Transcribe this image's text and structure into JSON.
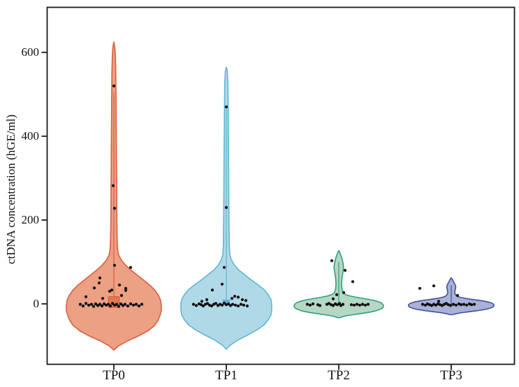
{
  "figure": {
    "background": "#ffffff",
    "axis_color": "#1a1a1a",
    "point_color": "#0e0e0e"
  },
  "chart_data": {
    "type": "violin",
    "title": "",
    "xlabel": "",
    "ylabel": "ctDNA concentration (hGE/ml)",
    "categories": [
      "TP0",
      "TP1",
      "TP2",
      "TP3"
    ],
    "yticks": [
      0,
      200,
      400,
      600
    ],
    "ytick_labels": [
      "0",
      "200",
      "400",
      "600"
    ],
    "ylim": [
      -130,
      680
    ],
    "grid": false,
    "legend": "none",
    "groups": [
      {
        "label": "TP0",
        "fill": "#ECA084",
        "stroke": "#D9603C",
        "range": [
          -110,
          625
        ],
        "profile": [
          [
            -110,
            0
          ],
          [
            -100,
            7
          ],
          [
            -88,
            20
          ],
          [
            -76,
            36
          ],
          [
            -64,
            49
          ],
          [
            -52,
            58
          ],
          [
            -40,
            63
          ],
          [
            -28,
            66
          ],
          [
            -16,
            68
          ],
          [
            -4,
            68
          ],
          [
            8,
            67
          ],
          [
            20,
            64
          ],
          [
            32,
            59
          ],
          [
            44,
            52
          ],
          [
            56,
            43
          ],
          [
            68,
            34
          ],
          [
            80,
            25
          ],
          [
            92,
            17
          ],
          [
            104,
            11
          ],
          [
            116,
            7
          ],
          [
            128,
            5.5
          ],
          [
            150,
            4.8
          ],
          [
            200,
            4.3
          ],
          [
            280,
            4
          ],
          [
            380,
            3.6
          ],
          [
            480,
            3.2
          ],
          [
            550,
            2.8
          ],
          [
            590,
            2.2
          ],
          [
            612,
            1.4
          ],
          [
            625,
            0
          ]
        ],
        "box": {
          "halfwidth": 7.5,
          "top": 17,
          "bottom": -8,
          "fill": "#E37A50"
        },
        "center_line": {
          "from": 17,
          "to": 505
        },
        "median_tick": null,
        "points": [
          [
            0,
            520
          ],
          [
            -1,
            282
          ],
          [
            1,
            228
          ],
          [
            1,
            92
          ],
          [
            24,
            87
          ],
          [
            -20,
            62
          ],
          [
            -21,
            50
          ],
          [
            8,
            45
          ],
          [
            -28,
            38
          ],
          [
            17,
            37
          ],
          [
            -3,
            33
          ],
          [
            17,
            32
          ],
          [
            -6,
            30
          ],
          [
            11,
            20
          ],
          [
            -40,
            17
          ],
          [
            -16,
            13
          ],
          [
            -48,
            -1
          ],
          [
            -44,
            -5
          ],
          [
            -40,
            1
          ],
          [
            -36,
            -3
          ],
          [
            -32,
            -1
          ],
          [
            -29,
            -6
          ],
          [
            -26,
            0
          ],
          [
            -23,
            -4
          ],
          [
            -20,
            -1
          ],
          [
            -17,
            -5
          ],
          [
            -14,
            0
          ],
          [
            -11,
            -3
          ],
          [
            -8,
            -1
          ],
          [
            -5,
            -5
          ],
          [
            -2,
            1
          ],
          [
            1,
            -3
          ],
          [
            4,
            -1
          ],
          [
            7,
            -6
          ],
          [
            10,
            0
          ],
          [
            13,
            -4
          ],
          [
            16,
            -1
          ],
          [
            20,
            -5
          ],
          [
            24,
            0
          ],
          [
            28,
            -3
          ],
          [
            32,
            -1
          ],
          [
            36,
            -5
          ],
          [
            40,
            -1
          ]
        ]
      },
      {
        "label": "TP1",
        "fill": "#B0D9E8",
        "stroke": "#62B5D2",
        "range": [
          -108,
          565
        ],
        "profile": [
          [
            -108,
            0
          ],
          [
            -98,
            6
          ],
          [
            -86,
            17
          ],
          [
            -74,
            31
          ],
          [
            -62,
            44
          ],
          [
            -50,
            54
          ],
          [
            -38,
            60
          ],
          [
            -26,
            64
          ],
          [
            -14,
            65
          ],
          [
            -2,
            65
          ],
          [
            10,
            64
          ],
          [
            22,
            60
          ],
          [
            34,
            54
          ],
          [
            46,
            45
          ],
          [
            58,
            35
          ],
          [
            70,
            26
          ],
          [
            82,
            17
          ],
          [
            94,
            11
          ],
          [
            106,
            7
          ],
          [
            118,
            5
          ],
          [
            140,
            4.3
          ],
          [
            200,
            3.8
          ],
          [
            300,
            3.4
          ],
          [
            400,
            3
          ],
          [
            480,
            2.6
          ],
          [
            530,
            2.2
          ],
          [
            555,
            1.4
          ],
          [
            565,
            0
          ]
        ],
        "box": {
          "halfwidth": 4.5,
          "top": 9,
          "bottom": -3,
          "fill": "#62B5D2"
        },
        "center_line": {
          "from": 9,
          "to": 465
        },
        "median_tick": null,
        "points": [
          [
            0,
            470
          ],
          [
            0,
            230
          ],
          [
            -3,
            87
          ],
          [
            -6,
            47
          ],
          [
            -20,
            33
          ],
          [
            12,
            18
          ],
          [
            17,
            16
          ],
          [
            8,
            13
          ],
          [
            -28,
            10
          ],
          [
            23,
            10
          ],
          [
            28,
            8
          ],
          [
            -35,
            6
          ],
          [
            -47,
            -1
          ],
          [
            -43,
            -4
          ],
          [
            -39,
            0
          ],
          [
            -36,
            -2
          ],
          [
            -33,
            -5
          ],
          [
            -30,
            -1
          ],
          [
            -27,
            1
          ],
          [
            -24,
            -3
          ],
          [
            -21,
            -5
          ],
          [
            -18,
            -1
          ],
          [
            -15,
            1
          ],
          [
            -12,
            -4
          ],
          [
            -9,
            -1
          ],
          [
            -6,
            -3
          ],
          [
            -3,
            2
          ],
          [
            0,
            -2
          ],
          [
            3,
            0
          ],
          [
            6,
            -4
          ],
          [
            9,
            -1
          ],
          [
            13,
            -3
          ],
          [
            17,
            -5
          ],
          [
            21,
            -1
          ],
          [
            25,
            -3
          ],
          [
            30,
            -5
          ]
        ]
      },
      {
        "label": "TP2",
        "fill": "#B6D7C4",
        "stroke": "#2F9E80",
        "range": [
          -33,
          127
        ],
        "profile": [
          [
            -33,
            0
          ],
          [
            -29,
            9
          ],
          [
            -25,
            24
          ],
          [
            -21,
            40
          ],
          [
            -17,
            52
          ],
          [
            -13,
            59
          ],
          [
            -9,
            63
          ],
          [
            -5,
            64
          ],
          [
            -1,
            63
          ],
          [
            3,
            60
          ],
          [
            7,
            53
          ],
          [
            11,
            42
          ],
          [
            15,
            28
          ],
          [
            19,
            16
          ],
          [
            23,
            9
          ],
          [
            28,
            6
          ],
          [
            36,
            4.5
          ],
          [
            48,
            4
          ],
          [
            62,
            4.5
          ],
          [
            76,
            6
          ],
          [
            88,
            6.8
          ],
          [
            98,
            6
          ],
          [
            108,
            4.5
          ],
          [
            116,
            3
          ],
          [
            122,
            1.5
          ],
          [
            127,
            0
          ]
        ],
        "box": null,
        "center_line": {
          "from": -2,
          "to": 100
        },
        "median_tick": {
          "halfwidth": 8,
          "value": -2
        },
        "points": [
          [
            -10,
            103
          ],
          [
            9,
            80
          ],
          [
            20,
            53
          ],
          [
            7,
            27
          ],
          [
            -3,
            22
          ],
          [
            -8,
            12
          ],
          [
            -45,
            -1
          ],
          [
            -41,
            -3
          ],
          [
            -37,
            0
          ],
          [
            -30,
            -2
          ],
          [
            -27,
            -4
          ],
          [
            -17,
            -1
          ],
          [
            -14,
            1
          ],
          [
            -11,
            -2
          ],
          [
            -8,
            -4
          ],
          [
            -5,
            0
          ],
          [
            -2,
            -2
          ],
          [
            1,
            1
          ],
          [
            3,
            -4
          ],
          [
            6,
            -1
          ],
          [
            18,
            -2
          ],
          [
            22,
            -3
          ],
          [
            26,
            -1
          ],
          [
            30,
            -3
          ],
          [
            34,
            -1
          ],
          [
            38,
            -3
          ],
          [
            42,
            -1
          ]
        ]
      },
      {
        "label": "TP3",
        "fill": "#AAB2D8",
        "stroke": "#3D4F9D",
        "range": [
          -26,
          62
        ],
        "profile": [
          [
            -26,
            0
          ],
          [
            -23,
            8
          ],
          [
            -20,
            20
          ],
          [
            -17,
            34
          ],
          [
            -14,
            46
          ],
          [
            -11,
            54
          ],
          [
            -8,
            59
          ],
          [
            -5,
            61
          ],
          [
            -2,
            61
          ],
          [
            1,
            59
          ],
          [
            4,
            54
          ],
          [
            7,
            45
          ],
          [
            10,
            33
          ],
          [
            13,
            21
          ],
          [
            16,
            12
          ],
          [
            20,
            7
          ],
          [
            26,
            5
          ],
          [
            33,
            5.5
          ],
          [
            40,
            6.5
          ],
          [
            46,
            5.5
          ],
          [
            52,
            3.5
          ],
          [
            57,
            2
          ],
          [
            62,
            0
          ]
        ],
        "box": null,
        "center_line": {
          "from": -2,
          "to": 45
        },
        "median_tick": {
          "halfwidth": 7,
          "value": -2
        },
        "points": [
          [
            -45,
            37
          ],
          [
            -25,
            43
          ],
          [
            9,
            20
          ],
          [
            -18,
            6
          ],
          [
            -41,
            -1
          ],
          [
            -37,
            -3
          ],
          [
            -34,
            0
          ],
          [
            -31,
            -2
          ],
          [
            -28,
            -4
          ],
          [
            -25,
            -1
          ],
          [
            -22,
            -3
          ],
          [
            -19,
            0
          ],
          [
            -16,
            -2
          ],
          [
            -13,
            -4
          ],
          [
            -10,
            -1
          ],
          [
            -7,
            1
          ],
          [
            -4,
            -2
          ],
          [
            -1,
            -4
          ],
          [
            3,
            -1
          ],
          [
            7,
            -3
          ],
          [
            11,
            0
          ],
          [
            14,
            -2
          ],
          [
            18,
            -1
          ],
          [
            22,
            -3
          ],
          [
            26,
            0
          ],
          [
            29,
            -2
          ],
          [
            33,
            -1
          ]
        ]
      }
    ]
  }
}
